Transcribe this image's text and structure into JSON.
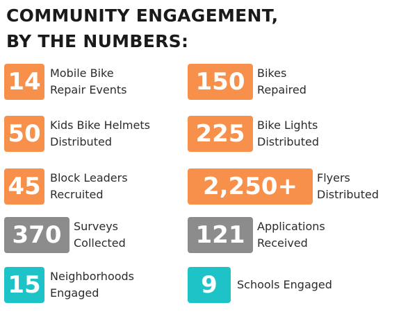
{
  "title": {
    "line1": "COMMUNITY ENGAGEMENT,",
    "line2": "BY THE NUMBERS:"
  },
  "colors": {
    "orange": "#f7904a",
    "gray": "#8c8c8c",
    "teal": "#1ec3c8"
  },
  "stats": [
    {
      "value": "14",
      "line1": "Mobile Bike",
      "line2": "Repair Events",
      "color": "orange"
    },
    {
      "value": "150",
      "line1": "Bikes",
      "line2": "Repaired",
      "color": "orange"
    },
    {
      "value": "50",
      "line1": "Kids Bike Helmets",
      "line2": "Distributed",
      "color": "orange"
    },
    {
      "value": "225",
      "line1": "Bike Lights",
      "line2": "Distributed",
      "color": "orange"
    },
    {
      "value": "45",
      "line1": "Block Leaders",
      "line2": "Recruited",
      "color": "orange"
    },
    {
      "value": "2,250+",
      "line1": "Flyers",
      "line2": "Distributed",
      "color": "orange"
    },
    {
      "value": "370",
      "line1": "Surveys",
      "line2": "Collected",
      "color": "gray"
    },
    {
      "value": "121",
      "line1": "Applications",
      "line2": "Received",
      "color": "gray"
    },
    {
      "value": "15",
      "line1": "Neighborhoods",
      "line2": "Engaged",
      "color": "teal"
    },
    {
      "value": "9",
      "line1": "Schools Engaged",
      "line2": "",
      "color": "teal"
    }
  ]
}
